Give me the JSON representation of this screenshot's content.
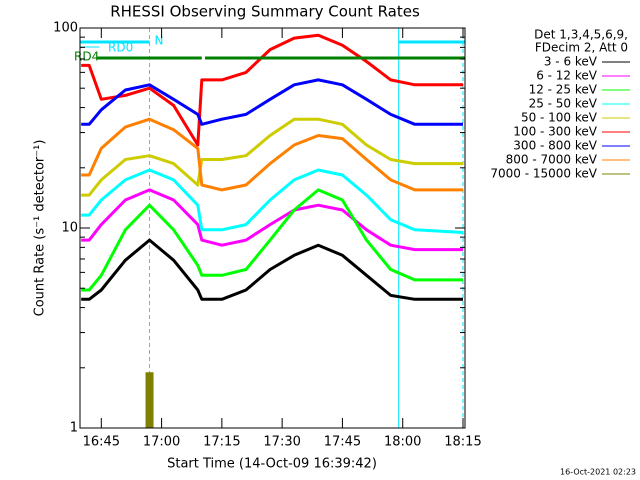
{
  "chart_data": {
    "type": "line",
    "title": "RHESSI Observing Summary Count Rates",
    "xlabel": "Start Time (14-Oct-09 16:39:42)",
    "ylabel": "Count Rate (s⁻¹ detector⁻¹)",
    "legend_title": [
      "Det 1,3,4,5,6,9,",
      "FDecim 2, Att 0"
    ],
    "footer": "16-Oct-2021 02:23",
    "log_y": true,
    "legend": "right",
    "xlim": [
      999.7,
      1095.5
    ],
    "xticks": [
      {
        "value": 1005,
        "label": "16:45"
      },
      {
        "value": 1020,
        "label": "17:00"
      },
      {
        "value": 1035,
        "label": "17:15"
      },
      {
        "value": 1050,
        "label": "17:30"
      },
      {
        "value": 1065,
        "label": "17:45"
      },
      {
        "value": 1080,
        "label": "18:00"
      },
      {
        "value": 1095,
        "label": "18:15"
      }
    ],
    "ylim": [
      1,
      100
    ],
    "yticks": [
      1,
      10,
      100
    ],
    "yminorticks": [
      2,
      3,
      4,
      5,
      6,
      7,
      8,
      9,
      20,
      30,
      40,
      50,
      60,
      70,
      80,
      90
    ],
    "x": [
      1000,
      1002,
      1005,
      1011,
      1017,
      1023,
      1029,
      1030,
      1035,
      1041,
      1047,
      1053,
      1059,
      1065,
      1071,
      1077,
      1083,
      1095
    ],
    "series": [
      {
        "name": "3 - 6 keV",
        "color": "#000000",
        "values": [
          4.4,
          4.4,
          4.9,
          6.9,
          8.7,
          6.9,
          4.9,
          4.4,
          4.4,
          4.9,
          6.2,
          7.3,
          8.2,
          7.3,
          5.8,
          4.6,
          4.4,
          4.4
        ]
      },
      {
        "name": "6 - 12 keV",
        "color": "#ff00ff",
        "values": [
          8.7,
          8.7,
          10.4,
          13.8,
          15.5,
          13.8,
          10.4,
          8.7,
          8.2,
          8.7,
          10.4,
          12.3,
          13.0,
          12.3,
          9.8,
          8.2,
          7.8,
          7.8
        ]
      },
      {
        "name": "12 - 25 keV",
        "color": "#00ff00",
        "values": [
          4.9,
          4.9,
          5.8,
          9.8,
          13.0,
          9.8,
          6.5,
          5.8,
          5.8,
          6.2,
          8.7,
          12.3,
          15.5,
          13.8,
          8.7,
          6.2,
          5.5,
          5.5
        ]
      },
      {
        "name": "25 - 50 keV",
        "color": "#00ffff",
        "values": [
          11.6,
          11.6,
          13.8,
          17.4,
          19.5,
          17.4,
          13.0,
          9.8,
          9.8,
          10.4,
          13.8,
          17.4,
          19.5,
          18.4,
          14.6,
          11.0,
          9.8,
          9.5
        ]
      },
      {
        "name": "50 - 100 keV",
        "color": "#cccc00",
        "values": [
          14.6,
          14.6,
          17.4,
          22,
          23,
          21,
          16.4,
          22,
          22,
          23,
          29,
          35,
          35,
          33,
          26,
          22,
          21,
          21
        ]
      },
      {
        "name": "100 - 300 keV",
        "color": "#ff0000",
        "values": [
          65,
          65,
          44,
          46,
          50,
          41,
          26,
          55,
          55,
          60,
          78,
          89,
          92,
          82,
          68,
          55,
          52,
          52
        ]
      },
      {
        "name": "300 - 800 keV",
        "color": "#0000ff",
        "values": [
          33,
          33,
          39,
          49,
          52,
          44,
          37,
          33,
          35,
          37,
          44,
          52,
          55,
          52,
          44,
          37,
          33,
          33
        ]
      },
      {
        "name": "800 - 7000 keV",
        "color": "#ff8000",
        "values": [
          18.4,
          18.4,
          25,
          32,
          35,
          31,
          25,
          16.4,
          15.5,
          16.4,
          21,
          26,
          29,
          28,
          22,
          17.4,
          15.5,
          15.5
        ]
      },
      {
        "name": "7000 - 15000 keV",
        "color": "#808000",
        "values": [
          null,
          null,
          null,
          null,
          1.9,
          null,
          null,
          null,
          null,
          null,
          null,
          null,
          null,
          null,
          null,
          null,
          null,
          null
        ]
      }
    ],
    "vlines": {
      "color": "#00e5ff",
      "lines": [
        {
          "x": 999.7,
          "dashed": false
        },
        {
          "x": 1017,
          "dashed": true
        },
        {
          "x": 1079,
          "dashed": false
        },
        {
          "x": 1095,
          "dashed": true
        }
      ]
    },
    "flags": [
      {
        "label": "N",
        "color": "#00e5ff",
        "segments": [
          [
            999.7,
            1017
          ],
          [
            1079,
            1095.5
          ]
        ]
      },
      {
        "label": "RD0",
        "color": "#00e5ff",
        "segments": [
          [
            999.7,
            1004.5
          ]
        ]
      },
      {
        "label": "RD4",
        "color": "#008000",
        "segments": [
          [
            1004,
            1030
          ],
          [
            1030.8,
            1095.5
          ]
        ]
      }
    ]
  }
}
